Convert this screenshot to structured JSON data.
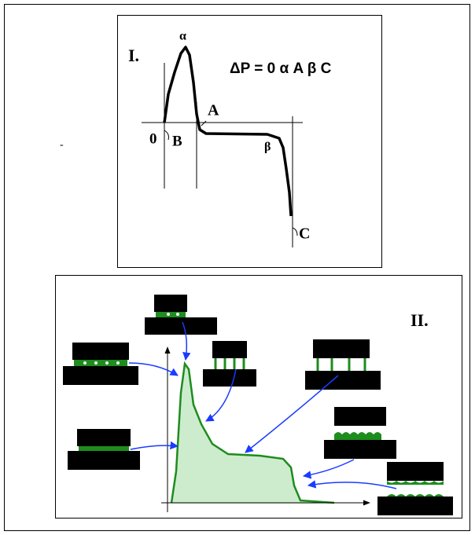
{
  "panel_1": {
    "label": "I.",
    "equation": "ΔP = 0 α A β C",
    "points": {
      "alpha": "α",
      "A": "A",
      "zero": "0",
      "B": "B",
      "beta": "β",
      "C": "C"
    }
  },
  "panel_2": {
    "label": "II."
  },
  "stray_mark": "-"
}
